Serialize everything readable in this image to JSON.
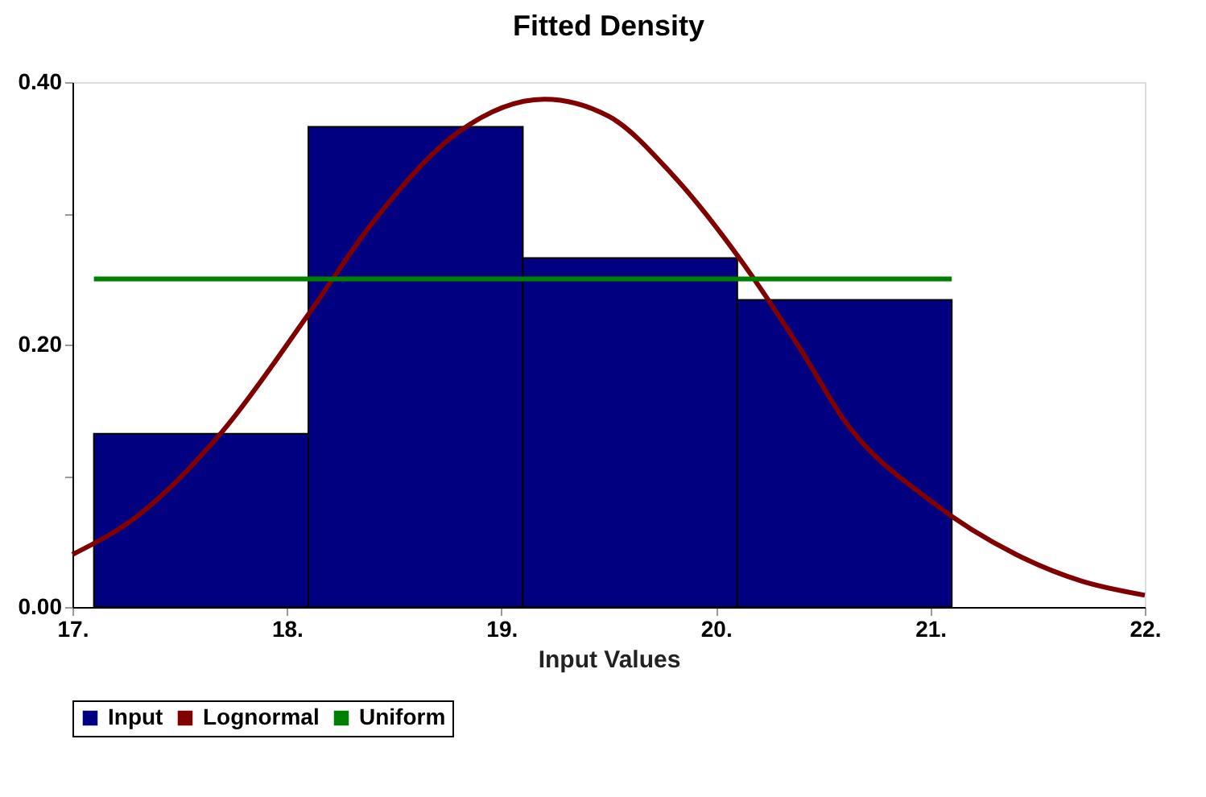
{
  "chart_data": {
    "type": "histogram",
    "title": "Fitted Density",
    "xlabel": "Input Values",
    "bins": [
      17.1,
      18.1,
      19.1,
      20.1,
      21.1
    ],
    "series": [
      {
        "name": "Input",
        "color": "#000080",
        "values": [
          0.132,
          0.366,
          0.266,
          0.234
        ]
      },
      {
        "name": "Lognormal",
        "type": "line",
        "color": "#800000",
        "x": [
          17.0,
          17.3,
          17.7,
          18.1,
          18.4,
          18.8,
          19.2,
          19.5,
          19.8,
          20.1,
          20.4,
          20.6,
          21.0,
          21.4,
          21.7,
          22.0
        ],
        "values": [
          0.04,
          0.069,
          0.134,
          0.223,
          0.293,
          0.362,
          0.387,
          0.374,
          0.329,
          0.268,
          0.195,
          0.142,
          0.081,
          0.04,
          0.02,
          0.009
        ]
      },
      {
        "name": "Uniform",
        "type": "line",
        "color": "#008000",
        "x": [
          17.1,
          21.1
        ],
        "values": [
          0.25,
          0.25
        ]
      }
    ],
    "xlim": [
      17,
      22
    ],
    "ylim": [
      0,
      0.4
    ],
    "xticks": [
      {
        "value": 17,
        "label": "17."
      },
      {
        "value": 18,
        "label": "18."
      },
      {
        "value": 19,
        "label": "19."
      },
      {
        "value": 20,
        "label": "20."
      },
      {
        "value": 21,
        "label": "21."
      },
      {
        "value": 22,
        "label": "22."
      }
    ],
    "yticks": [
      {
        "value": 0,
        "label": "0.00"
      },
      {
        "value": 0.1,
        "label": null
      },
      {
        "value": 0.2,
        "label": "0.20"
      },
      {
        "value": 0.3,
        "label": null
      },
      {
        "value": 0.4,
        "label": "0.40"
      }
    ],
    "grid": false,
    "legend": "bottom",
    "marker": "none",
    "line_style": "solid"
  }
}
